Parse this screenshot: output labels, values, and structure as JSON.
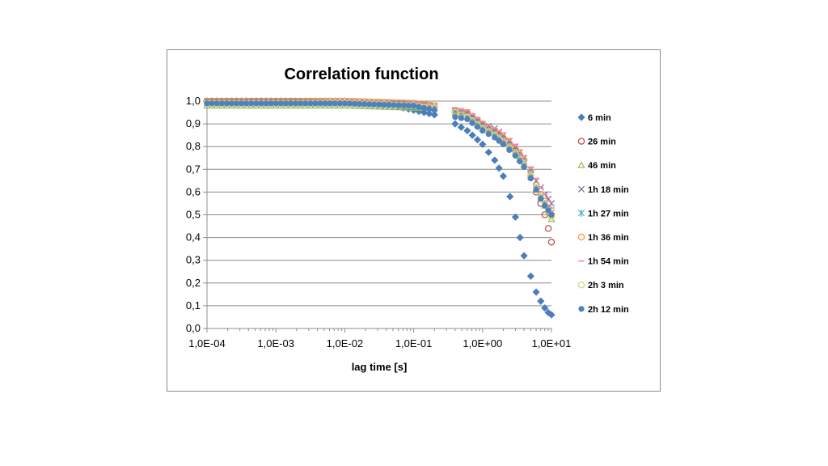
{
  "chart_data": {
    "type": "scatter",
    "title": "Correlation function",
    "xlabel": "lag time [s]",
    "ylabel": "",
    "x_scale": "log",
    "xlim": [
      0.0001,
      10
    ],
    "ylim": [
      0,
      1
    ],
    "x_ticks": [
      "1,0E-04",
      "1,0E-03",
      "1,0E-02",
      "1,0E-01",
      "1,0E+00",
      "1,0E+01"
    ],
    "y_ticks": [
      "0,0",
      "0,1",
      "0,2",
      "0,3",
      "0,4",
      "0,5",
      "0,6",
      "0,7",
      "0,8",
      "0,9",
      "1,0"
    ],
    "grid": "horizontal",
    "legend_position": "right",
    "series": [
      {
        "name": "6 min",
        "color": "#4a7ebb",
        "marker": "diamond",
        "x": [
          0.0001,
          0.001,
          0.01,
          0.05,
          0.1,
          0.2,
          0.4,
          0.6,
          1.0,
          1.5,
          2.0,
          2.5,
          3.0,
          3.5,
          4.0,
          5.0,
          6.0,
          7.0,
          8.0,
          9.0,
          10.0
        ],
        "y": [
          1.0,
          1.0,
          0.99,
          0.98,
          0.96,
          0.94,
          0.9,
          0.87,
          0.81,
          0.74,
          0.67,
          0.58,
          0.49,
          0.4,
          0.32,
          0.23,
          0.16,
          0.12,
          0.09,
          0.07,
          0.06
        ]
      },
      {
        "name": "26 min",
        "color": "#c0504d",
        "marker": "circle",
        "x": [
          0.0001,
          0.001,
          0.01,
          0.1,
          0.2,
          0.4,
          0.6,
          1.0,
          1.5,
          2.0,
          3.0,
          4.0,
          5.0,
          6.0,
          7.0,
          8.0,
          9.0,
          10.0
        ],
        "y": [
          1.0,
          1.0,
          1.0,
          0.99,
          0.97,
          0.95,
          0.94,
          0.89,
          0.86,
          0.83,
          0.78,
          0.72,
          0.67,
          0.6,
          0.55,
          0.5,
          0.44,
          0.38
        ]
      },
      {
        "name": "46 min",
        "color": "#9bbb59",
        "marker": "triangle",
        "x": [
          0.0001,
          0.001,
          0.01,
          0.1,
          0.2,
          0.4,
          0.6,
          1.0,
          1.5,
          2.0,
          3.0,
          4.0,
          5.0,
          6.0,
          7.0,
          8.0,
          9.0,
          10.0
        ],
        "y": [
          0.98,
          0.98,
          0.98,
          0.97,
          0.97,
          0.95,
          0.93,
          0.88,
          0.86,
          0.82,
          0.77,
          0.72,
          0.67,
          0.61,
          0.57,
          0.54,
          0.51,
          0.48
        ]
      },
      {
        "name": "1h 18 min",
        "color": "#8064a2",
        "marker": "x",
        "x": [
          0.0001,
          0.001,
          0.01,
          0.1,
          0.2,
          0.4,
          0.6,
          1.0,
          1.5,
          2.0,
          3.0,
          4.0,
          5.0,
          6.0,
          7.0,
          8.0,
          9.0,
          10.0
        ],
        "y": [
          1.0,
          1.0,
          1.0,
          0.99,
          0.98,
          0.96,
          0.95,
          0.9,
          0.88,
          0.85,
          0.8,
          0.75,
          0.7,
          0.65,
          0.62,
          0.59,
          0.57,
          0.55
        ]
      },
      {
        "name": "1h 27 min",
        "color": "#4bacc6",
        "marker": "asterisk",
        "x": [
          0.0001,
          0.001,
          0.01,
          0.1,
          0.2,
          0.4,
          0.6,
          1.0,
          1.5,
          2.0,
          3.0,
          4.0,
          5.0,
          6.0,
          7.0,
          8.0,
          9.0,
          10.0
        ],
        "y": [
          0.99,
          0.99,
          0.99,
          0.98,
          0.97,
          0.95,
          0.94,
          0.89,
          0.86,
          0.83,
          0.78,
          0.73,
          0.68,
          0.62,
          0.58,
          0.55,
          0.53,
          0.51
        ]
      },
      {
        "name": "1h 36 min",
        "color": "#f79646",
        "marker": "circle",
        "x": [
          0.0001,
          0.001,
          0.01,
          0.1,
          0.2,
          0.4,
          0.6,
          1.0,
          1.5,
          2.0,
          3.0,
          4.0,
          5.0,
          6.0,
          7.0,
          8.0,
          9.0,
          10.0
        ],
        "y": [
          1.0,
          1.0,
          1.0,
          0.99,
          0.98,
          0.96,
          0.95,
          0.9,
          0.87,
          0.84,
          0.79,
          0.74,
          0.69,
          0.63,
          0.59,
          0.56,
          0.53,
          0.5
        ]
      },
      {
        "name": "1h 54 min",
        "color": "#ff7f9f",
        "marker": "dash",
        "x": [
          0.0001,
          0.001,
          0.01,
          0.1,
          0.2,
          0.4,
          0.6,
          1.0,
          1.5,
          2.0,
          3.0,
          4.0,
          5.0,
          6.0,
          7.0,
          8.0,
          9.0,
          10.0
        ],
        "y": [
          1.0,
          1.0,
          1.0,
          0.99,
          0.98,
          0.97,
          0.96,
          0.91,
          0.88,
          0.86,
          0.81,
          0.76,
          0.71,
          0.66,
          0.62,
          0.59,
          0.56,
          0.53
        ]
      },
      {
        "name": "2h 3 min",
        "color": "#d2d98a",
        "marker": "circle",
        "x": [
          0.0001,
          0.001,
          0.01,
          0.1,
          0.2,
          0.4,
          0.6,
          1.0,
          1.5,
          2.0,
          3.0,
          4.0,
          5.0,
          6.0,
          7.0,
          8.0,
          9.0,
          10.0
        ],
        "y": [
          0.99,
          0.99,
          0.99,
          0.98,
          0.97,
          0.95,
          0.93,
          0.88,
          0.85,
          0.82,
          0.77,
          0.72,
          0.67,
          0.62,
          0.58,
          0.55,
          0.52,
          0.49
        ]
      },
      {
        "name": "2h 12 min",
        "color": "#4f81bd",
        "marker": "dot",
        "x": [
          0.0001,
          0.001,
          0.01,
          0.1,
          0.2,
          0.4,
          0.6,
          1.0,
          1.5,
          2.0,
          3.0,
          4.0,
          5.0,
          6.0,
          7.0,
          8.0,
          9.0,
          10.0
        ],
        "y": [
          0.99,
          0.99,
          0.99,
          0.98,
          0.96,
          0.93,
          0.92,
          0.87,
          0.84,
          0.81,
          0.76,
          0.71,
          0.66,
          0.61,
          0.57,
          0.54,
          0.52,
          0.5
        ]
      }
    ]
  }
}
